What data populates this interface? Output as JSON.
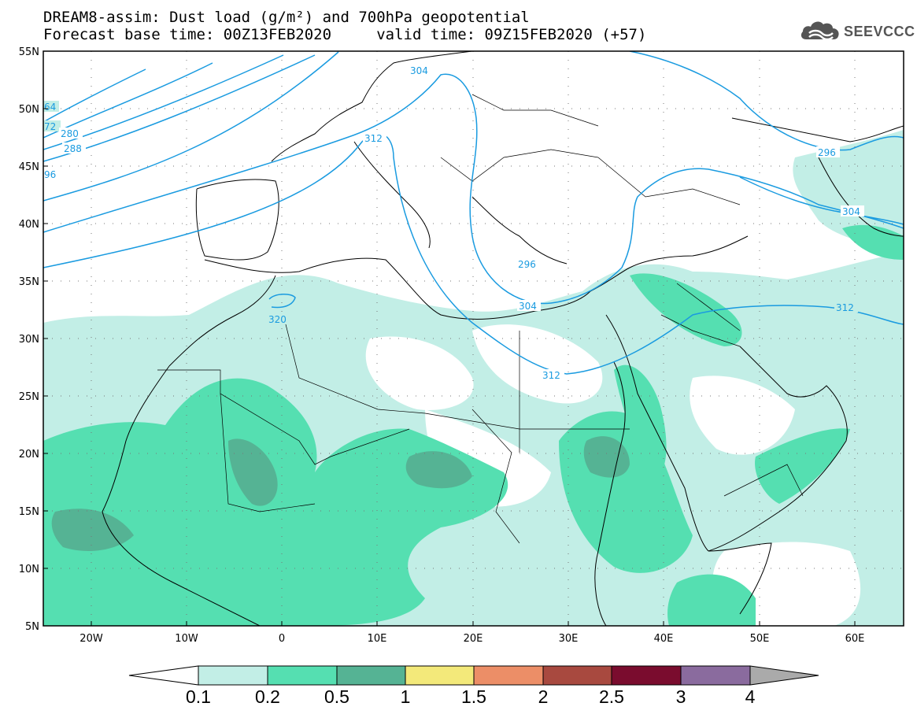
{
  "header": {
    "line1": "DREAM8-assim: Dust load (g/m²) and 700hPa geopotential",
    "line2": "Forecast base time: 00Z13FEB2020     valid time: 09Z15FEB2020 (+57)"
  },
  "logo": {
    "text": "SEEVCCC",
    "icon": "cloud-icon"
  },
  "map": {
    "lat_labels": [
      "55N",
      "50N",
      "45N",
      "40N",
      "35N",
      "30N",
      "25N",
      "20N",
      "15N",
      "10N",
      "5N"
    ],
    "lon_labels": [
      "20W",
      "10W",
      "0",
      "10E",
      "20E",
      "30E",
      "40E",
      "50E",
      "60E"
    ],
    "contour_labels": [
      "64",
      "72",
      "280",
      "288",
      "96",
      "304",
      "312",
      "320",
      "296",
      "296",
      "304",
      "304",
      "312",
      "312"
    ],
    "contour_color": "#1a9be0"
  },
  "colorbar": {
    "tick_labels": [
      "0.1",
      "0.2",
      "0.5",
      "1",
      "1.5",
      "2",
      "2.5",
      "3",
      "4"
    ],
    "colors": [
      "#c2eee6",
      "#55dfb1",
      "#55b394",
      "#f3e97a",
      "#ec8e67",
      "#a8493f",
      "#7a0c2e",
      "#8a6b9e",
      "#aaaaaa"
    ]
  }
}
